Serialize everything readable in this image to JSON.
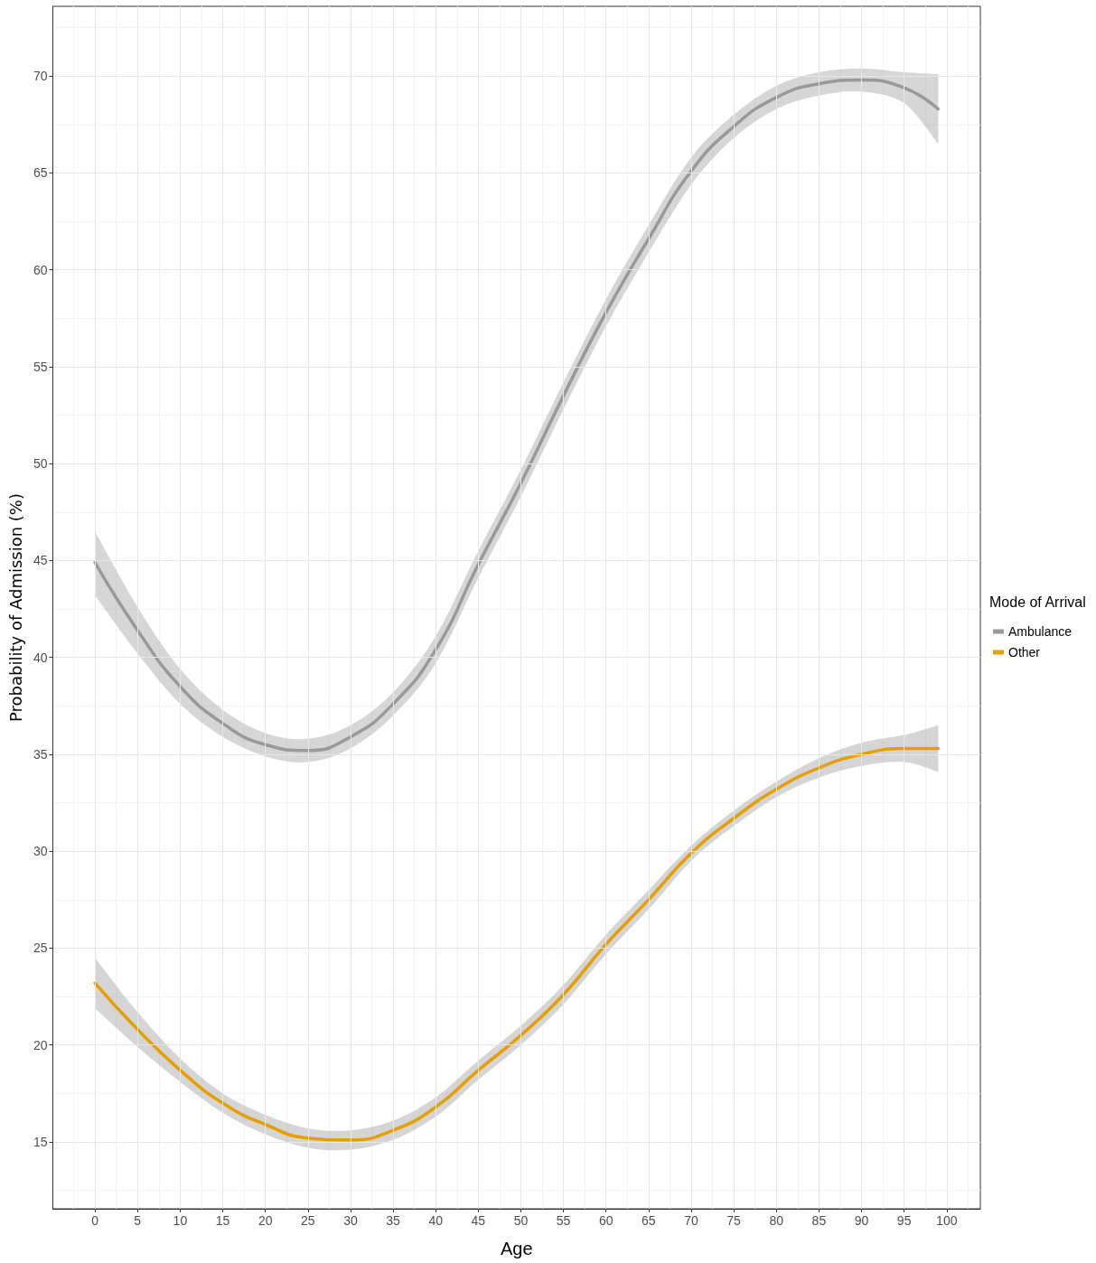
{
  "chart_data": {
    "type": "line",
    "xlabel": "Age",
    "ylabel": "Probability of Admission (%)",
    "legend_title": "Mode of Arrival",
    "legend": "right",
    "grid": true,
    "marker": "none",
    "line_style": "solid",
    "xlim": [
      -4.95,
      103.95
    ],
    "xticks": [
      0,
      5,
      10,
      15,
      20,
      25,
      30,
      35,
      40,
      45,
      50,
      55,
      60,
      65,
      70,
      75,
      80,
      85,
      90,
      95,
      100
    ],
    "ylim": [
      11.55,
      73.6
    ],
    "yticks": [
      15,
      20,
      25,
      30,
      35,
      40,
      45,
      50,
      55,
      60,
      65,
      70
    ],
    "x": [
      0,
      5,
      10,
      15,
      20,
      25,
      30,
      35,
      40,
      45,
      50,
      55,
      60,
      65,
      70,
      75,
      80,
      85,
      90,
      95,
      99
    ],
    "series": [
      {
        "name": "Ambulance",
        "color": "#999999",
        "values": [
          44.9,
          41.4,
          38.5,
          36.6,
          35.5,
          35.2,
          35.9,
          37.6,
          40.4,
          44.8,
          49.0,
          53.5,
          57.8,
          61.6,
          65.1,
          67.4,
          68.9,
          69.6,
          69.8,
          69.4,
          68.3
        ],
        "lower": [
          43.2,
          40.2,
          37.6,
          35.9,
          34.9,
          34.6,
          35.3,
          37.0,
          39.7,
          44.1,
          48.3,
          52.8,
          57.1,
          60.9,
          64.4,
          66.8,
          68.3,
          69.0,
          69.2,
          68.6,
          66.5
        ],
        "upper": [
          46.5,
          42.6,
          39.4,
          37.3,
          36.1,
          35.8,
          36.5,
          38.2,
          41.1,
          45.5,
          49.7,
          54.2,
          58.5,
          62.3,
          65.8,
          68.0,
          69.5,
          70.2,
          70.4,
          70.2,
          70.1
        ]
      },
      {
        "name": "Other",
        "color": "#e69f00",
        "values": [
          23.2,
          20.8,
          18.7,
          17.0,
          15.9,
          15.2,
          15.1,
          15.6,
          16.8,
          18.7,
          20.5,
          22.6,
          25.2,
          27.5,
          29.9,
          31.7,
          33.2,
          34.3,
          35.0,
          35.3,
          35.3
        ],
        "lower": [
          21.9,
          19.9,
          18.1,
          16.5,
          15.4,
          14.7,
          14.6,
          15.1,
          16.3,
          18.2,
          20.0,
          22.1,
          24.7,
          27.0,
          29.5,
          31.3,
          32.8,
          33.8,
          34.4,
          34.6,
          34.1
        ],
        "upper": [
          24.5,
          21.7,
          19.3,
          17.5,
          16.4,
          15.7,
          15.6,
          16.1,
          17.3,
          19.2,
          21.0,
          23.1,
          25.7,
          28.0,
          30.3,
          32.1,
          33.6,
          34.8,
          35.6,
          36.0,
          36.5
        ]
      }
    ]
  }
}
